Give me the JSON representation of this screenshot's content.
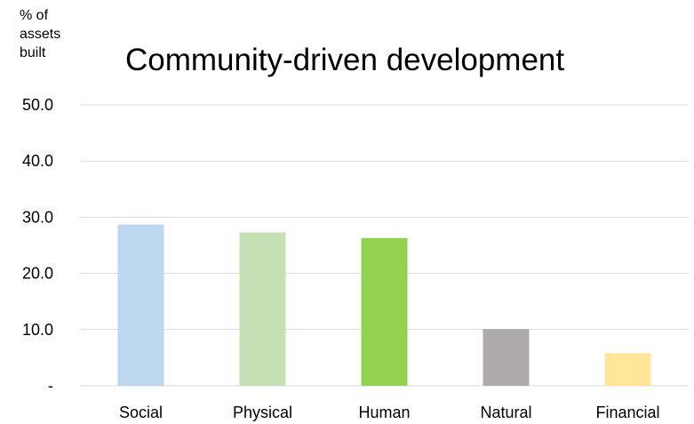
{
  "chart_data": {
    "type": "bar",
    "title": "Community-driven development",
    "ylabel_lines": [
      "% of",
      "assets",
      "built"
    ],
    "xlabel": "",
    "categories": [
      "Social",
      "Physical",
      "Human",
      "Natural",
      "Financial"
    ],
    "values": [
      28.7,
      27.3,
      26.3,
      10.1,
      5.8
    ],
    "colors": [
      "#BDD7EE",
      "#C5E0B4",
      "#92D050",
      "#AEAAAA",
      "#FFE699"
    ],
    "ylim": [
      0,
      50
    ],
    "yticks": [
      0,
      10,
      20,
      30,
      40,
      50
    ],
    "ytick_labels": [
      "-",
      "10.0",
      "20.0",
      "30.0",
      "40.0",
      "50.0"
    ],
    "grid": true,
    "legend": "none"
  }
}
